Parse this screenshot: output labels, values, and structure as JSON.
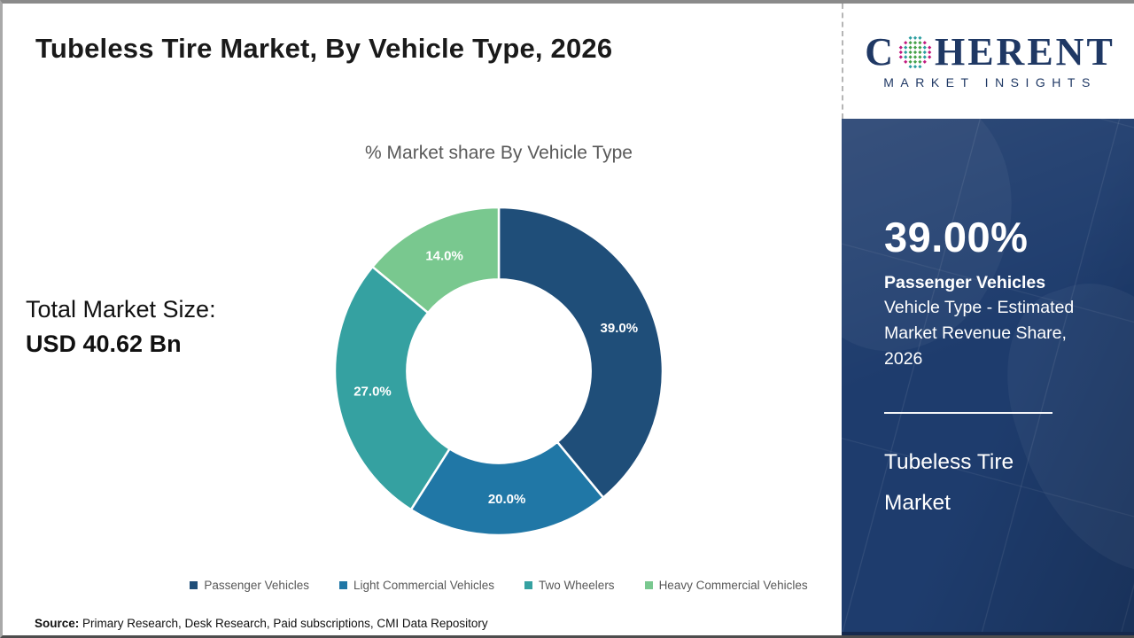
{
  "title": "Tubeless Tire Market, By Vehicle Type, 2026",
  "logo": {
    "brand_first_letter": "C",
    "brand_rest": "HERENT",
    "tagline": "MARKET INSIGHTS",
    "brand_color": "#1f3864",
    "globe_colors": {
      "green": "#43a047",
      "teal": "#2a9d9f",
      "magenta": "#c2187e"
    }
  },
  "total_market": {
    "label": "Total Market Size:",
    "value": "USD 40.62 Bn"
  },
  "chart_data": {
    "type": "pie",
    "subtype": "donut",
    "title": "% Market share By Vehicle Type",
    "categories": [
      "Passenger Vehicles",
      "Light Commercial Vehicles",
      "Two Wheelers",
      "Heavy Commercial Vehicles"
    ],
    "values": [
      39.0,
      20.0,
      27.0,
      14.0
    ],
    "labels": [
      "39.0%",
      "20.0%",
      "27.0%",
      "14.0%"
    ],
    "colors": [
      "#1f4e79",
      "#2077a6",
      "#35a1a1",
      "#79c88f"
    ],
    "start_angle_deg": 0,
    "direction": "clockwise",
    "donut_hole_ratio": 0.56,
    "legend_position": "bottom"
  },
  "sidebar": {
    "headline_value": "39.00%",
    "headline_label": "Passenger Vehicles",
    "headline_desc": "Vehicle Type - Estimated Market Revenue Share, 2026",
    "panel_title": "Tubeless Tire Market",
    "bg_color": "#1e3c6d"
  },
  "source": {
    "label": "Source:",
    "text": " Primary Research, Desk Research, Paid subscriptions, CMI Data Repository"
  }
}
